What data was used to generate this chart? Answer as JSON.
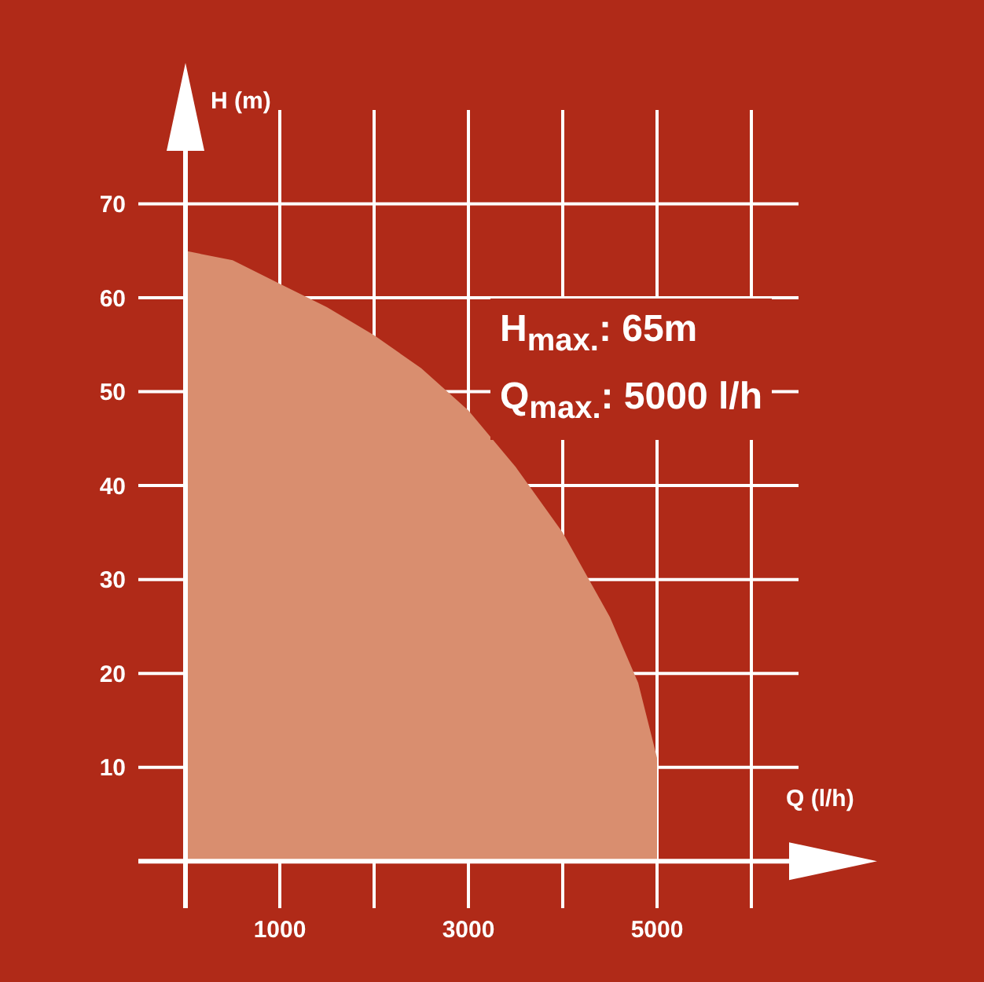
{
  "chart_data": {
    "type": "area",
    "xlabel": "Q (l/h)",
    "ylabel": "H (m)",
    "annotations": [
      "H$_{max.}$: 65m",
      "Q$_{max.}$: 5000 l/h"
    ],
    "x": [
      0,
      500,
      1000,
      1500,
      2000,
      2500,
      3000,
      3500,
      4000,
      4500,
      4800,
      5000,
      5000
    ],
    "series": [
      {
        "color": "#d98e6f",
        "values": [
          65,
          64,
          61.5,
          59,
          56,
          52.5,
          48,
          42,
          35,
          26,
          19,
          11,
          0
        ]
      }
    ],
    "xlim": [
      -500,
      6500
    ],
    "ylim": [
      -5,
      80
    ],
    "xticks": [
      {
        "value": 0,
        "label": null
      },
      1000,
      {
        "value": 2000,
        "label": null
      },
      3000,
      {
        "value": 4000,
        "label": null
      },
      5000,
      {
        "value": 6000,
        "label": null
      }
    ],
    "yticks": [
      {
        "value": 0,
        "label": null
      },
      10,
      20,
      30,
      40,
      50,
      60,
      70
    ],
    "grid": true
  }
}
